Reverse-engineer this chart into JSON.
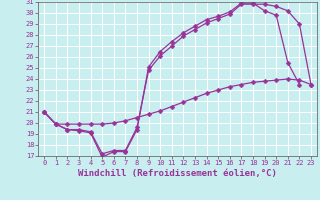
{
  "title": "",
  "xlabel": "Windchill (Refroidissement éolien,°C)",
  "ylabel": "",
  "background_color": "#c8eef0",
  "line_color": "#993399",
  "grid_color": "#ffffff",
  "xlim": [
    -0.5,
    23.5
  ],
  "ylim": [
    17,
    31
  ],
  "xticks": [
    0,
    1,
    2,
    3,
    4,
    5,
    6,
    7,
    8,
    9,
    10,
    11,
    12,
    13,
    14,
    15,
    16,
    17,
    18,
    19,
    20,
    21,
    22,
    23
  ],
  "yticks": [
    17,
    18,
    19,
    20,
    21,
    22,
    23,
    24,
    25,
    26,
    27,
    28,
    29,
    30,
    31
  ],
  "line1_x": [
    0,
    1,
    2,
    3,
    4,
    5,
    6,
    7,
    8,
    9,
    10,
    11,
    12,
    13,
    14,
    15,
    16,
    17,
    18,
    19,
    20,
    21,
    22
  ],
  "line1_y": [
    21.0,
    19.9,
    19.4,
    19.3,
    19.1,
    16.9,
    17.4,
    17.4,
    19.4,
    25.1,
    26.5,
    27.4,
    28.2,
    28.8,
    29.4,
    29.7,
    30.1,
    30.9,
    30.9,
    30.2,
    29.8,
    25.5,
    23.5
  ],
  "line2_x": [
    0,
    1,
    2,
    3,
    4,
    5,
    6,
    7,
    8,
    9,
    10,
    11,
    12,
    13,
    14,
    15,
    16,
    17,
    18,
    19,
    20,
    21,
    22,
    23
  ],
  "line2_y": [
    21.0,
    19.9,
    19.4,
    19.4,
    19.2,
    17.2,
    17.5,
    17.5,
    19.6,
    24.8,
    26.1,
    27.0,
    27.9,
    28.5,
    29.1,
    29.5,
    29.9,
    30.8,
    30.8,
    30.8,
    30.6,
    30.2,
    29.0,
    23.5
  ],
  "line3_x": [
    0,
    1,
    2,
    3,
    4,
    5,
    6,
    7,
    8,
    9,
    10,
    11,
    12,
    13,
    14,
    15,
    16,
    17,
    18,
    19,
    20,
    21,
    22,
    23
  ],
  "line3_y": [
    21.0,
    19.9,
    19.9,
    19.9,
    19.9,
    19.9,
    20.0,
    20.2,
    20.5,
    20.8,
    21.1,
    21.5,
    21.9,
    22.3,
    22.7,
    23.0,
    23.3,
    23.5,
    23.7,
    23.8,
    23.9,
    24.0,
    23.9,
    23.5
  ],
  "marker": "D",
  "markersize": 2.5,
  "linewidth": 0.9,
  "tick_fontsize": 5.0,
  "xlabel_fontsize": 6.5
}
